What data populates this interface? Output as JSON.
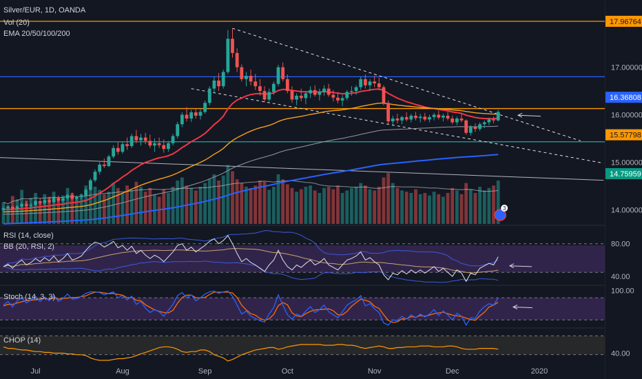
{
  "legend": {
    "symbol": "Silver/EUR, 1D, OANDA",
    "vol": "Vol (20)",
    "ema": "EMA 20/50/100/200",
    "rsi": "RSI (14, close)",
    "bb": "BB (20, RSI, 2)",
    "stoch": "Stoch (14, 3, 3)",
    "chop": "CHOP (14)"
  },
  "colors": {
    "background": "#131722",
    "up": "#26a69a",
    "down": "#ef5350",
    "ema20": "#f23645",
    "ema50": "#f7a21b",
    "ema100": "#9598a1",
    "ema200": "#2962ff",
    "rsi": "#e0e3eb",
    "rsi_panel": "#4a2f6d",
    "stoch_k": "#2962ff",
    "stoch_d": "#ff6d00",
    "chop": "#ff9800",
    "hline_orange": "#ff9800",
    "hline_blue": "#2962ff"
  },
  "price_badges": [
    {
      "label": "17.96764",
      "color": "#ff9800",
      "text_color": "#131722",
      "value": 17.96764
    },
    {
      "label": "16.36808",
      "color": "#2962ff",
      "text_color": "#ffffff",
      "value": 16.36808
    },
    {
      "label": "15.57798",
      "color": "#ff9800",
      "text_color": "#131722",
      "value": 15.57798
    },
    {
      "label": "14.75959",
      "color": "#089981",
      "text_color": "#ffffff",
      "value": 14.75959
    }
  ],
  "event_marker": "3",
  "chart_data": {
    "type": "candlestick",
    "symbol": "Silver/EUR",
    "timeframe": "1D",
    "x_ticks": [
      "Jul",
      "Aug",
      "Sep",
      "Oct",
      "Nov",
      "Dec",
      "2020"
    ],
    "price_axis": {
      "ticks": [
        "17.00000",
        "16.00000",
        "15.00000",
        "14.00000"
      ],
      "tick_values": [
        17.0,
        16.0,
        15.0,
        14.0
      ],
      "range": [
        13.7,
        18.3
      ]
    },
    "rsi_axis": {
      "ticks": [
        "80.00",
        "40.00"
      ],
      "tick_values": [
        80,
        40
      ],
      "range": [
        30,
        100
      ]
    },
    "stoch_axis": {
      "ticks": [
        "100.00"
      ],
      "tick_values": [
        100
      ],
      "range": [
        0,
        110
      ]
    },
    "chop_axis": {
      "ticks": [
        "40.00"
      ],
      "tick_values": [
        40
      ],
      "range": [
        30,
        70
      ]
    },
    "horizontal_levels": [
      {
        "value": 17.96764,
        "color": "#ff9800"
      },
      {
        "value": 16.8,
        "color": "#2962ff"
      },
      {
        "value": 16.13,
        "color": "#ff9800"
      },
      {
        "value": 15.43,
        "color": "#26a69a"
      }
    ],
    "candles": [
      [
        14.0,
        14.07,
        13.95,
        14.03
      ],
      [
        14.03,
        14.1,
        14.0,
        14.06
      ],
      [
        14.06,
        14.08,
        14.0,
        14.02
      ],
      [
        14.02,
        14.09,
        13.98,
        14.07
      ],
      [
        14.07,
        14.15,
        14.04,
        14.12
      ],
      [
        14.12,
        14.18,
        14.05,
        14.08
      ],
      [
        14.08,
        14.14,
        14.02,
        14.1
      ],
      [
        14.1,
        14.2,
        14.08,
        14.18
      ],
      [
        14.18,
        14.24,
        14.1,
        14.14
      ],
      [
        14.14,
        14.22,
        14.1,
        14.2
      ],
      [
        14.2,
        14.25,
        14.12,
        14.16
      ],
      [
        14.16,
        14.28,
        14.14,
        14.25
      ],
      [
        14.25,
        14.3,
        14.15,
        14.19
      ],
      [
        14.19,
        14.27,
        14.16,
        14.24
      ],
      [
        14.24,
        14.34,
        14.2,
        14.31
      ],
      [
        14.31,
        14.36,
        14.2,
        14.23
      ],
      [
        14.23,
        14.3,
        14.18,
        14.27
      ],
      [
        14.27,
        14.34,
        14.22,
        14.3
      ],
      [
        14.3,
        14.45,
        14.28,
        14.42
      ],
      [
        14.42,
        14.66,
        14.4,
        14.62
      ],
      [
        14.62,
        14.85,
        14.58,
        14.8
      ],
      [
        14.8,
        15.0,
        14.74,
        14.95
      ],
      [
        14.95,
        15.08,
        14.88,
        14.92
      ],
      [
        14.92,
        15.16,
        14.9,
        15.12
      ],
      [
        15.12,
        15.36,
        15.08,
        15.3
      ],
      [
        15.3,
        15.42,
        15.16,
        15.22
      ],
      [
        15.22,
        15.44,
        15.18,
        15.38
      ],
      [
        15.38,
        15.52,
        15.26,
        15.34
      ],
      [
        15.34,
        15.6,
        15.3,
        15.55
      ],
      [
        15.55,
        15.68,
        15.4,
        15.46
      ],
      [
        15.46,
        15.6,
        15.35,
        15.52
      ],
      [
        15.52,
        15.62,
        15.38,
        15.45
      ],
      [
        15.45,
        15.58,
        15.3,
        15.35
      ],
      [
        15.35,
        15.5,
        15.22,
        15.4
      ],
      [
        15.4,
        15.52,
        15.3,
        15.36
      ],
      [
        15.36,
        15.48,
        15.2,
        15.28
      ],
      [
        15.28,
        15.45,
        15.22,
        15.4
      ],
      [
        15.4,
        15.6,
        15.35,
        15.55
      ],
      [
        15.55,
        15.85,
        15.5,
        15.8
      ],
      [
        15.8,
        16.05,
        15.74,
        16.0
      ],
      [
        16.0,
        16.16,
        15.86,
        15.92
      ],
      [
        15.92,
        16.1,
        15.85,
        16.05
      ],
      [
        16.05,
        16.12,
        15.92,
        15.98
      ],
      [
        15.98,
        16.12,
        15.9,
        16.06
      ],
      [
        16.06,
        16.3,
        16.02,
        16.25
      ],
      [
        16.25,
        16.6,
        16.2,
        16.55
      ],
      [
        16.55,
        16.8,
        16.45,
        16.72
      ],
      [
        16.72,
        16.88,
        16.5,
        16.6
      ],
      [
        16.6,
        16.95,
        16.55,
        16.9
      ],
      [
        16.9,
        17.78,
        16.86,
        17.6
      ],
      [
        17.6,
        17.82,
        17.2,
        17.3
      ],
      [
        17.3,
        17.4,
        16.9,
        17.0
      ],
      [
        17.0,
        17.06,
        16.7,
        16.75
      ],
      [
        16.75,
        16.9,
        16.6,
        16.82
      ],
      [
        16.82,
        16.95,
        16.62,
        16.7
      ],
      [
        16.7,
        16.86,
        16.52,
        16.6
      ],
      [
        16.6,
        16.75,
        16.4,
        16.5
      ],
      [
        16.5,
        16.6,
        16.26,
        16.32
      ],
      [
        16.32,
        16.55,
        16.28,
        16.48
      ],
      [
        16.48,
        16.7,
        16.42,
        16.65
      ],
      [
        16.65,
        17.05,
        16.6,
        17.0
      ],
      [
        17.0,
        17.1,
        16.7,
        16.75
      ],
      [
        16.75,
        16.85,
        16.45,
        16.5
      ],
      [
        16.5,
        16.6,
        16.25,
        16.32
      ],
      [
        16.32,
        16.45,
        16.2,
        16.4
      ],
      [
        16.4,
        16.55,
        16.28,
        16.35
      ],
      [
        16.35,
        16.5,
        16.22,
        16.45
      ],
      [
        16.45,
        16.6,
        16.35,
        16.52
      ],
      [
        16.52,
        16.62,
        16.38,
        16.42
      ],
      [
        16.42,
        16.55,
        16.3,
        16.48
      ],
      [
        16.48,
        16.62,
        16.4,
        16.55
      ],
      [
        16.55,
        16.65,
        16.38,
        16.42
      ],
      [
        16.42,
        16.52,
        16.28,
        16.36
      ],
      [
        16.36,
        16.48,
        16.24,
        16.3
      ],
      [
        16.3,
        16.42,
        16.18,
        16.35
      ],
      [
        16.35,
        16.52,
        16.3,
        16.48
      ],
      [
        16.48,
        16.6,
        16.4,
        16.5
      ],
      [
        16.5,
        16.62,
        16.42,
        16.58
      ],
      [
        16.58,
        16.8,
        16.52,
        16.75
      ],
      [
        16.75,
        16.85,
        16.55,
        16.62
      ],
      [
        16.62,
        16.75,
        16.5,
        16.7
      ],
      [
        16.7,
        16.82,
        16.58,
        16.66
      ],
      [
        16.66,
        16.78,
        16.52,
        16.58
      ],
      [
        16.58,
        16.62,
        16.2,
        16.25
      ],
      [
        16.25,
        16.3,
        15.8,
        15.86
      ],
      [
        15.86,
        15.98,
        15.76,
        15.92
      ],
      [
        15.92,
        16.02,
        15.82,
        15.88
      ],
      [
        15.88,
        15.98,
        15.8,
        15.95
      ],
      [
        15.95,
        16.05,
        15.86,
        15.9
      ],
      [
        15.9,
        16.02,
        15.84,
        15.98
      ],
      [
        15.98,
        16.06,
        15.88,
        15.93
      ],
      [
        15.93,
        16.02,
        15.84,
        15.96
      ],
      [
        15.96,
        16.04,
        15.86,
        15.9
      ],
      [
        15.9,
        16.0,
        15.84,
        15.95
      ],
      [
        15.95,
        16.04,
        15.88,
        16.0
      ],
      [
        16.0,
        16.08,
        15.9,
        15.94
      ],
      [
        15.94,
        16.02,
        15.86,
        15.98
      ],
      [
        15.98,
        16.06,
        15.88,
        15.92
      ],
      [
        15.92,
        15.98,
        15.8,
        15.84
      ],
      [
        15.84,
        15.96,
        15.78,
        15.92
      ],
      [
        15.92,
        16.02,
        15.84,
        15.88
      ],
      [
        15.88,
        15.9,
        15.58,
        15.62
      ],
      [
        15.62,
        15.78,
        15.56,
        15.74
      ],
      [
        15.74,
        15.82,
        15.64,
        15.7
      ],
      [
        15.7,
        15.84,
        15.66,
        15.8
      ],
      [
        15.8,
        15.88,
        15.72,
        15.84
      ],
      [
        15.84,
        15.94,
        15.78,
        15.9
      ],
      [
        15.9,
        15.96,
        15.82,
        15.88
      ],
      [
        15.88,
        16.1,
        15.86,
        16.06
      ]
    ],
    "volume": [
      0.35,
      0.3,
      0.45,
      0.4,
      0.55,
      0.38,
      0.42,
      0.5,
      0.36,
      0.48,
      0.44,
      0.52,
      0.4,
      0.46,
      0.58,
      0.5,
      0.42,
      0.48,
      0.62,
      0.7,
      0.6,
      0.55,
      0.48,
      0.52,
      0.66,
      0.58,
      0.5,
      0.62,
      0.55,
      0.68,
      0.6,
      0.52,
      0.58,
      0.48,
      0.44,
      0.56,
      0.5,
      0.6,
      0.7,
      0.75,
      0.62,
      0.58,
      0.54,
      0.6,
      0.66,
      0.72,
      0.8,
      0.7,
      0.78,
      0.95,
      0.85,
      0.72,
      0.66,
      0.6,
      0.58,
      0.62,
      0.7,
      0.68,
      0.55,
      0.6,
      0.8,
      0.72,
      0.64,
      0.58,
      0.52,
      0.56,
      0.6,
      0.62,
      0.54,
      0.5,
      0.58,
      0.6,
      0.56,
      0.62,
      0.5,
      0.54,
      0.58,
      0.6,
      0.66,
      0.62,
      0.56,
      0.54,
      0.6,
      0.75,
      0.82,
      0.66,
      0.58,
      0.54,
      0.52,
      0.5,
      0.56,
      0.48,
      0.5,
      0.46,
      0.52,
      0.48,
      0.44,
      0.5,
      0.58,
      0.54,
      0.48,
      0.66,
      0.56,
      0.5,
      0.6,
      0.54,
      0.58,
      0.62,
      0.7
    ],
    "rsi": [
      52,
      55,
      50,
      56,
      60,
      54,
      57,
      62,
      58,
      63,
      59,
      65,
      58,
      62,
      68,
      60,
      62,
      65,
      72,
      78,
      82,
      80,
      76,
      79,
      83,
      75,
      78,
      72,
      77,
      68,
      72,
      66,
      62,
      66,
      63,
      58,
      64,
      70,
      78,
      80,
      72,
      76,
      70,
      74,
      78,
      83,
      86,
      80,
      84,
      90,
      80,
      68,
      58,
      62,
      57,
      54,
      50,
      46,
      54,
      60,
      72,
      60,
      52,
      48,
      54,
      51,
      56,
      60,
      54,
      57,
      62,
      54,
      51,
      48,
      54,
      60,
      62,
      65,
      70,
      60,
      63,
      58,
      54,
      42,
      36,
      44,
      42,
      47,
      43,
      48,
      44,
      48,
      44,
      48,
      52,
      46,
      50,
      45,
      40,
      48,
      44,
      34,
      44,
      42,
      50,
      53,
      56,
      54,
      64
    ],
    "stoch_k": [
      60,
      70,
      55,
      72,
      80,
      66,
      74,
      84,
      70,
      82,
      72,
      86,
      70,
      78,
      90,
      76,
      78,
      84,
      92,
      96,
      96,
      94,
      88,
      92,
      96,
      80,
      86,
      74,
      84,
      62,
      70,
      52,
      40,
      48,
      42,
      30,
      46,
      62,
      86,
      94,
      80,
      88,
      72,
      80,
      90,
      96,
      98,
      92,
      96,
      98,
      84,
      60,
      36,
      44,
      30,
      24,
      18,
      14,
      36,
      54,
      88,
      60,
      34,
      22,
      36,
      30,
      44,
      56,
      40,
      48,
      60,
      42,
      34,
      26,
      42,
      60,
      68,
      74,
      86,
      58,
      64,
      50,
      40,
      12,
      6,
      20,
      18,
      30,
      22,
      34,
      26,
      36,
      28,
      36,
      48,
      32,
      44,
      34,
      20,
      38,
      30,
      6,
      26,
      24,
      44,
      56,
      64,
      60,
      80
    ],
    "stoch_d": [
      58,
      62,
      62,
      66,
      69,
      73,
      73,
      75,
      76,
      79,
      75,
      80,
      76,
      78,
      79,
      81,
      81,
      83,
      85,
      91,
      95,
      95,
      93,
      91,
      92,
      89,
      87,
      80,
      81,
      73,
      72,
      61,
      54,
      47,
      43,
      40,
      39,
      46,
      65,
      81,
      87,
      87,
      80,
      80,
      81,
      89,
      95,
      95,
      95,
      95,
      93,
      81,
      60,
      47,
      37,
      33,
      24,
      19,
      23,
      35,
      59,
      67,
      61,
      39,
      31,
      29,
      37,
      43,
      47,
      48,
      49,
      50,
      45,
      34,
      34,
      43,
      57,
      67,
      76,
      73,
      69,
      57,
      51,
      34,
      19,
      13,
      15,
      23,
      23,
      29,
      27,
      32,
      30,
      33,
      37,
      39,
      41,
      37,
      33,
      31,
      29,
      25,
      21,
      19,
      31,
      41,
      55,
      60,
      68
    ],
    "chop": [
      48,
      46,
      46,
      45,
      44,
      44,
      43,
      42,
      42,
      41,
      41,
      40,
      40,
      40,
      39,
      39,
      38,
      38,
      37,
      34,
      32,
      31,
      31,
      31,
      32,
      33,
      33,
      34,
      35,
      37,
      39,
      41,
      43,
      45,
      47,
      48,
      48,
      47,
      45,
      42,
      41,
      42,
      42,
      44,
      44,
      42,
      38,
      36,
      34,
      30,
      32,
      35,
      38,
      40,
      42,
      44,
      45,
      46,
      47,
      47,
      45,
      46,
      48,
      49,
      50,
      51,
      51,
      51,
      51,
      51,
      50,
      50,
      50,
      51,
      51,
      50,
      50,
      49,
      47,
      46,
      47,
      48,
      49,
      48,
      46,
      46,
      47,
      47,
      48,
      48,
      48,
      49,
      49,
      49,
      48,
      48,
      48,
      49,
      49,
      48,
      46,
      45,
      45,
      45,
      46,
      46,
      46,
      46,
      45
    ]
  }
}
